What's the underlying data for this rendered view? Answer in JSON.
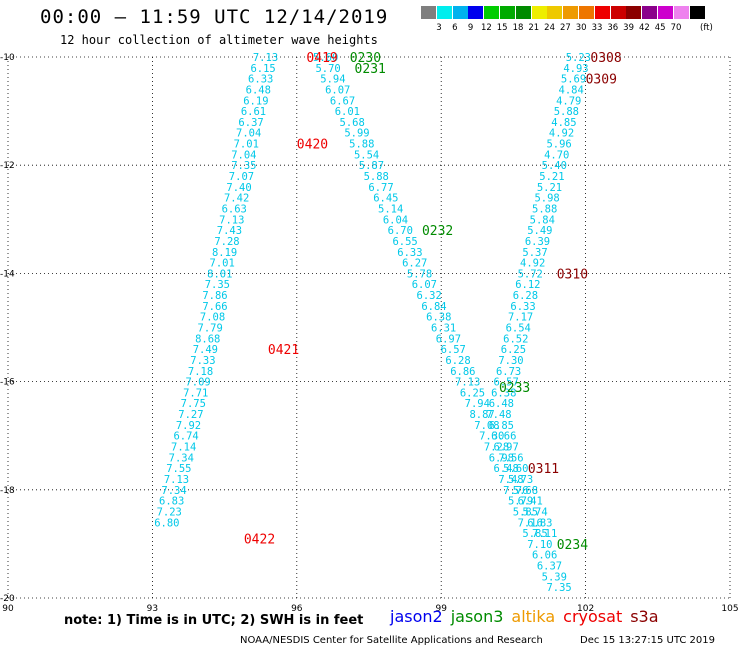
{
  "header": {
    "title": "00:00 – 11:59 UTC 12/14/2019",
    "subtitle": "12 hour collection of altimeter wave heights"
  },
  "colorbar": {
    "colors": [
      "#7f7f7f",
      "#00eeee",
      "#00b2ee",
      "#0000ee",
      "#00cd00",
      "#00ab00",
      "#008b00",
      "#eeee00",
      "#eec900",
      "#ee9a00",
      "#ee7600",
      "#ee0000",
      "#cd0000",
      "#8b0000",
      "#8b008b",
      "#cd00cd",
      "#ee82ee",
      "#000000"
    ],
    "labels": [
      "3",
      "6",
      "9",
      "12",
      "15",
      "18",
      "21",
      "24",
      "27",
      "30",
      "33",
      "36",
      "39",
      "42",
      "45",
      "70"
    ],
    "unit": "(ft)"
  },
  "note": "note: 1) Time is in UTC; 2) SWH is in feet",
  "legend": [
    {
      "name": "jason2",
      "color": "#0000ee"
    },
    {
      "name": "jason3",
      "color": "#008b00"
    },
    {
      "name": "altika",
      "color": "#ee9a00"
    },
    {
      "name": "cryosat",
      "color": "#ee0000"
    },
    {
      "name": "s3a",
      "color": "#8b0000"
    }
  ],
  "footer": {
    "credit": "NOAA/NESDIS Center for Satellite Applications and Research",
    "stamp": "Dec 15 13:27:15 UTC 2019"
  },
  "chart_data": {
    "type": "scatter",
    "xlim": [
      90,
      105
    ],
    "ylim": [
      -20,
      -10
    ],
    "x_ticks": [
      "90",
      "93",
      "96",
      "99",
      "102",
      "105"
    ],
    "y_ticks": [
      "-10",
      "-12",
      "-14",
      "-16",
      "-18",
      "-20"
    ],
    "value_color": "#00c8e8",
    "tracks": [
      {
        "satellite": "cryosat",
        "color": "#ee0000",
        "times": [
          {
            "label": "0419",
            "x": 96.2,
            "y": -10.0
          },
          {
            "label": "0420",
            "x": 96.0,
            "y": -11.6
          },
          {
            "label": "0421",
            "x": 95.4,
            "y": -15.4
          },
          {
            "label": "0422",
            "x": 94.9,
            "y": -18.9
          }
        ],
        "points": [
          {
            "x": 95.35,
            "y": -10.0,
            "v": "7.13"
          },
          {
            "x": 95.3,
            "y": -10.2,
            "v": "6.15"
          },
          {
            "x": 95.25,
            "y": -10.4,
            "v": "6.33"
          },
          {
            "x": 95.2,
            "y": -10.6,
            "v": "6.48"
          },
          {
            "x": 95.15,
            "y": -10.8,
            "v": "6.19"
          },
          {
            "x": 95.1,
            "y": -11.0,
            "v": "6.61"
          },
          {
            "x": 95.05,
            "y": -11.2,
            "v": "6.37"
          },
          {
            "x": 95.0,
            "y": -11.4,
            "v": "7.04"
          },
          {
            "x": 94.95,
            "y": -11.6,
            "v": "7.01"
          },
          {
            "x": 94.9,
            "y": -11.8,
            "v": "7.04"
          },
          {
            "x": 94.9,
            "y": -12.0,
            "v": "7.35"
          },
          {
            "x": 94.85,
            "y": -12.2,
            "v": "7.07"
          },
          {
            "x": 94.8,
            "y": -12.4,
            "v": "7.40"
          },
          {
            "x": 94.75,
            "y": -12.6,
            "v": "7.42"
          },
          {
            "x": 94.7,
            "y": -12.8,
            "v": "6.63"
          },
          {
            "x": 94.65,
            "y": -13.0,
            "v": "7.13"
          },
          {
            "x": 94.6,
            "y": -13.2,
            "v": "7.43"
          },
          {
            "x": 94.55,
            "y": -13.4,
            "v": "7.28"
          },
          {
            "x": 94.5,
            "y": -13.6,
            "v": "8.19"
          },
          {
            "x": 94.45,
            "y": -13.8,
            "v": "7.01"
          },
          {
            "x": 94.4,
            "y": -14.0,
            "v": "8.01"
          },
          {
            "x": 94.35,
            "y": -14.2,
            "v": "7.35"
          },
          {
            "x": 94.3,
            "y": -14.4,
            "v": "7.86"
          },
          {
            "x": 94.3,
            "y": -14.6,
            "v": "7.66"
          },
          {
            "x": 94.25,
            "y": -14.8,
            "v": "7.08"
          },
          {
            "x": 94.2,
            "y": -15.0,
            "v": "7.79"
          },
          {
            "x": 94.15,
            "y": -15.2,
            "v": "8.68"
          },
          {
            "x": 94.1,
            "y": -15.4,
            "v": "7.49"
          },
          {
            "x": 94.05,
            "y": -15.6,
            "v": "7.33"
          },
          {
            "x": 94.0,
            "y": -15.8,
            "v": "7.18"
          },
          {
            "x": 93.95,
            "y": -16.0,
            "v": "7.09"
          },
          {
            "x": 93.9,
            "y": -16.2,
            "v": "7.71"
          },
          {
            "x": 93.85,
            "y": -16.4,
            "v": "7.75"
          },
          {
            "x": 93.8,
            "y": -16.6,
            "v": "7.27"
          },
          {
            "x": 93.75,
            "y": -16.8,
            "v": "7.92"
          },
          {
            "x": 93.7,
            "y": -17.0,
            "v": "6.74"
          },
          {
            "x": 93.65,
            "y": -17.2,
            "v": "7.14"
          },
          {
            "x": 93.6,
            "y": -17.4,
            "v": "7.34"
          },
          {
            "x": 93.55,
            "y": -17.6,
            "v": "7.55"
          },
          {
            "x": 93.5,
            "y": -17.8,
            "v": "7.13"
          },
          {
            "x": 93.45,
            "y": -18.0,
            "v": "7.34"
          },
          {
            "x": 93.4,
            "y": -18.2,
            "v": "6.83"
          },
          {
            "x": 93.35,
            "y": -18.4,
            "v": "7.23"
          },
          {
            "x": 93.3,
            "y": -18.6,
            "v": "6.80"
          }
        ]
      },
      {
        "satellite": "jason3",
        "color": "#008b00",
        "times": [
          {
            "label": "0230",
            "x": 97.1,
            "y": -10.0
          },
          {
            "label": "0231",
            "x": 97.2,
            "y": -10.2
          },
          {
            "label": "0232",
            "x": 98.6,
            "y": -13.2
          },
          {
            "label": "0233",
            "x": 100.2,
            "y": -16.1
          },
          {
            "label": "0234",
            "x": 101.4,
            "y": -19.0
          }
        ],
        "points": [
          {
            "x": 96.6,
            "y": -10.0,
            "v": "5.60"
          },
          {
            "x": 96.65,
            "y": -10.2,
            "v": "5.70"
          },
          {
            "x": 96.75,
            "y": -10.4,
            "v": "5.94"
          },
          {
            "x": 96.85,
            "y": -10.6,
            "v": "6.07"
          },
          {
            "x": 96.95,
            "y": -10.8,
            "v": "6.67"
          },
          {
            "x": 97.05,
            "y": -11.0,
            "v": "6.01"
          },
          {
            "x": 97.15,
            "y": -11.2,
            "v": "5.68"
          },
          {
            "x": 97.25,
            "y": -11.4,
            "v": "5.99"
          },
          {
            "x": 97.35,
            "y": -11.6,
            "v": "5.88"
          },
          {
            "x": 97.45,
            "y": -11.8,
            "v": "5.54"
          },
          {
            "x": 97.55,
            "y": -12.0,
            "v": "5.87"
          },
          {
            "x": 97.65,
            "y": -12.2,
            "v": "5.88"
          },
          {
            "x": 97.75,
            "y": -12.4,
            "v": "6.77"
          },
          {
            "x": 97.85,
            "y": -12.6,
            "v": "6.45"
          },
          {
            "x": 97.95,
            "y": -12.8,
            "v": "5.14"
          },
          {
            "x": 98.05,
            "y": -13.0,
            "v": "6.04"
          },
          {
            "x": 98.15,
            "y": -13.2,
            "v": "6.70"
          },
          {
            "x": 98.25,
            "y": -13.4,
            "v": "6.55"
          },
          {
            "x": 98.35,
            "y": -13.6,
            "v": "6.33"
          },
          {
            "x": 98.45,
            "y": -13.8,
            "v": "6.27"
          },
          {
            "x": 98.55,
            "y": -14.0,
            "v": "5.78"
          },
          {
            "x": 98.65,
            "y": -14.2,
            "v": "6.07"
          },
          {
            "x": 98.75,
            "y": -14.4,
            "v": "6.32"
          },
          {
            "x": 98.85,
            "y": -14.6,
            "v": "6.84"
          },
          {
            "x": 98.95,
            "y": -14.8,
            "v": "6.38"
          },
          {
            "x": 99.05,
            "y": -15.0,
            "v": "6.31"
          },
          {
            "x": 99.15,
            "y": -15.2,
            "v": "6.97"
          },
          {
            "x": 99.25,
            "y": -15.4,
            "v": "6.57"
          },
          {
            "x": 99.35,
            "y": -15.6,
            "v": "6.28"
          },
          {
            "x": 99.45,
            "y": -15.8,
            "v": "6.86"
          },
          {
            "x": 99.55,
            "y": -16.0,
            "v": "7.13"
          },
          {
            "x": 99.65,
            "y": -16.2,
            "v": "6.25"
          },
          {
            "x": 99.75,
            "y": -16.4,
            "v": "7.94"
          },
          {
            "x": 99.85,
            "y": -16.6,
            "v": "8.87"
          },
          {
            "x": 99.95,
            "y": -16.8,
            "v": "7.08"
          },
          {
            "x": 100.05,
            "y": -17.0,
            "v": "7.30"
          },
          {
            "x": 100.15,
            "y": -17.2,
            "v": "7.28"
          },
          {
            "x": 100.25,
            "y": -17.4,
            "v": "6.98"
          },
          {
            "x": 100.35,
            "y": -17.6,
            "v": "6.48"
          },
          {
            "x": 100.45,
            "y": -17.8,
            "v": "7.48"
          },
          {
            "x": 100.55,
            "y": -18.0,
            "v": "7.76"
          },
          {
            "x": 100.65,
            "y": -18.2,
            "v": "5.79"
          },
          {
            "x": 100.75,
            "y": -18.4,
            "v": "5.85"
          },
          {
            "x": 100.85,
            "y": -18.6,
            "v": "7.16"
          },
          {
            "x": 100.95,
            "y": -18.8,
            "v": "5.85"
          },
          {
            "x": 101.05,
            "y": -19.0,
            "v": "7.10"
          },
          {
            "x": 101.15,
            "y": -19.2,
            "v": "6.06"
          },
          {
            "x": 101.25,
            "y": -19.4,
            "v": "6.37"
          },
          {
            "x": 101.35,
            "y": -19.6,
            "v": "5.39"
          },
          {
            "x": 101.45,
            "y": -19.8,
            "v": "7.35"
          }
        ]
      },
      {
        "satellite": "s3a",
        "color": "#8b0000",
        "times": [
          {
            "label": "0308",
            "x": 102.1,
            "y": -10.0
          },
          {
            "label": "0309",
            "x": 102.0,
            "y": -10.4
          },
          {
            "label": "0310",
            "x": 101.4,
            "y": -14.0
          },
          {
            "label": "0311",
            "x": 100.8,
            "y": -17.6
          }
        ],
        "points": [
          {
            "x": 101.85,
            "y": -10.0,
            "v": "5.23"
          },
          {
            "x": 101.8,
            "y": -10.2,
            "v": "4.93"
          },
          {
            "x": 101.75,
            "y": -10.4,
            "v": "5.69"
          },
          {
            "x": 101.7,
            "y": -10.6,
            "v": "4.84"
          },
          {
            "x": 101.65,
            "y": -10.8,
            "v": "4.79"
          },
          {
            "x": 101.6,
            "y": -11.0,
            "v": "5.88"
          },
          {
            "x": 101.55,
            "y": -11.2,
            "v": "4.85"
          },
          {
            "x": 101.5,
            "y": -11.4,
            "v": "4.92"
          },
          {
            "x": 101.45,
            "y": -11.6,
            "v": "5.96"
          },
          {
            "x": 101.4,
            "y": -11.8,
            "v": "4.70"
          },
          {
            "x": 101.35,
            "y": -12.0,
            "v": "5.40"
          },
          {
            "x": 101.3,
            "y": -12.2,
            "v": "5.21"
          },
          {
            "x": 101.25,
            "y": -12.4,
            "v": "5.21"
          },
          {
            "x": 101.2,
            "y": -12.6,
            "v": "5.98"
          },
          {
            "x": 101.15,
            "y": -12.8,
            "v": "5.88"
          },
          {
            "x": 101.1,
            "y": -13.0,
            "v": "5.84"
          },
          {
            "x": 101.05,
            "y": -13.2,
            "v": "5.49"
          },
          {
            "x": 101.0,
            "y": -13.4,
            "v": "6.39"
          },
          {
            "x": 100.95,
            "y": -13.6,
            "v": "5.37"
          },
          {
            "x": 100.9,
            "y": -13.8,
            "v": "4.92"
          },
          {
            "x": 100.85,
            "y": -14.0,
            "v": "5.72"
          },
          {
            "x": 100.8,
            "y": -14.2,
            "v": "6.12"
          },
          {
            "x": 100.75,
            "y": -14.4,
            "v": "6.28"
          },
          {
            "x": 100.7,
            "y": -14.6,
            "v": "6.33"
          },
          {
            "x": 100.65,
            "y": -14.8,
            "v": "7.17"
          },
          {
            "x": 100.6,
            "y": -15.0,
            "v": "6.54"
          },
          {
            "x": 100.55,
            "y": -15.2,
            "v": "6.52"
          },
          {
            "x": 100.5,
            "y": -15.4,
            "v": "6.25"
          },
          {
            "x": 100.45,
            "y": -15.6,
            "v": "7.30"
          },
          {
            "x": 100.4,
            "y": -15.8,
            "v": "6.73"
          },
          {
            "x": 100.35,
            "y": -16.0,
            "v": "6.57"
          },
          {
            "x": 100.3,
            "y": -16.2,
            "v": "6.38"
          },
          {
            "x": 100.25,
            "y": -16.4,
            "v": "6.48"
          },
          {
            "x": 100.2,
            "y": -16.6,
            "v": "7.48"
          },
          {
            "x": 100.25,
            "y": -16.8,
            "v": "6.85"
          },
          {
            "x": 100.3,
            "y": -17.0,
            "v": "6.66"
          },
          {
            "x": 100.35,
            "y": -17.2,
            "v": "6.97"
          },
          {
            "x": 100.45,
            "y": -17.4,
            "v": "7.56"
          },
          {
            "x": 100.55,
            "y": -17.6,
            "v": "5.60"
          },
          {
            "x": 100.65,
            "y": -17.8,
            "v": "5.73"
          },
          {
            "x": 100.75,
            "y": -18.0,
            "v": "5.68"
          },
          {
            "x": 100.85,
            "y": -18.2,
            "v": "6.41"
          },
          {
            "x": 100.95,
            "y": -18.4,
            "v": "5.74"
          },
          {
            "x": 101.05,
            "y": -18.6,
            "v": "6.83"
          },
          {
            "x": 101.15,
            "y": -18.8,
            "v": "7.11"
          }
        ]
      }
    ]
  }
}
